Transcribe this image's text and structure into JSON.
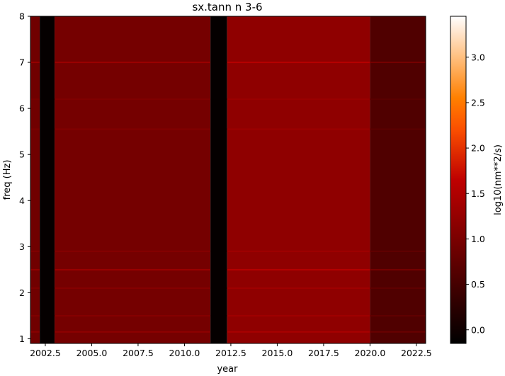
{
  "chart_data": {
    "type": "heatmap",
    "title": "sx.tann n 3-6",
    "xlabel": "year",
    "ylabel": "freq (Hz)",
    "xlim": [
      2001.7,
      2023.0
    ],
    "ylim": [
      0.9,
      8.0
    ],
    "x_ticks": [
      2002.5,
      2005.0,
      2007.5,
      2010.0,
      2012.5,
      2015.0,
      2017.5,
      2020.0,
      2022.5
    ],
    "x_tick_labels": [
      "2002.5",
      "2005.0",
      "2007.5",
      "2010.0",
      "2012.5",
      "2015.0",
      "2017.5",
      "2020.0",
      "2022.5"
    ],
    "y_ticks": [
      1,
      2,
      3,
      4,
      5,
      6,
      7,
      8
    ],
    "y_tick_labels": [
      "1",
      "2",
      "3",
      "4",
      "5",
      "6",
      "7",
      "8"
    ],
    "colorbar": {
      "label": "log10(nm**2/s)",
      "colormap": "gist_heat",
      "range": [
        -0.15,
        3.45
      ],
      "ticks": [
        0.0,
        0.5,
        1.0,
        1.5,
        2.0,
        2.5,
        3.0
      ],
      "tick_labels": [
        "0.0",
        "0.5",
        "1.0",
        "1.5",
        "2.0",
        "2.5",
        "3.0"
      ]
    },
    "regions": [
      {
        "x": [
          2001.7,
          2002.2
        ],
        "level": 0.9
      },
      {
        "x": [
          2002.2,
          2003.0
        ],
        "level": -0.1
      },
      {
        "x": [
          2003.0,
          2011.4
        ],
        "level": 0.95
      },
      {
        "x": [
          2011.4,
          2012.3
        ],
        "level": -0.1
      },
      {
        "x": [
          2012.3,
          2020.0
        ],
        "level": 1.2
      },
      {
        "x": [
          2020.0,
          2023.0
        ],
        "level": 0.6
      }
    ],
    "bands": [
      {
        "freq": 7.0,
        "delta": 0.35
      },
      {
        "freq": 2.5,
        "delta": 0.35
      },
      {
        "freq": 2.9,
        "delta": 0.15
      },
      {
        "freq": 2.1,
        "delta": 0.15
      },
      {
        "freq": 6.2,
        "delta": 0.1
      },
      {
        "freq": 5.55,
        "delta": 0.12
      },
      {
        "freq": 1.5,
        "delta": 0.15
      },
      {
        "freq": 1.15,
        "delta": 0.25
      }
    ]
  }
}
